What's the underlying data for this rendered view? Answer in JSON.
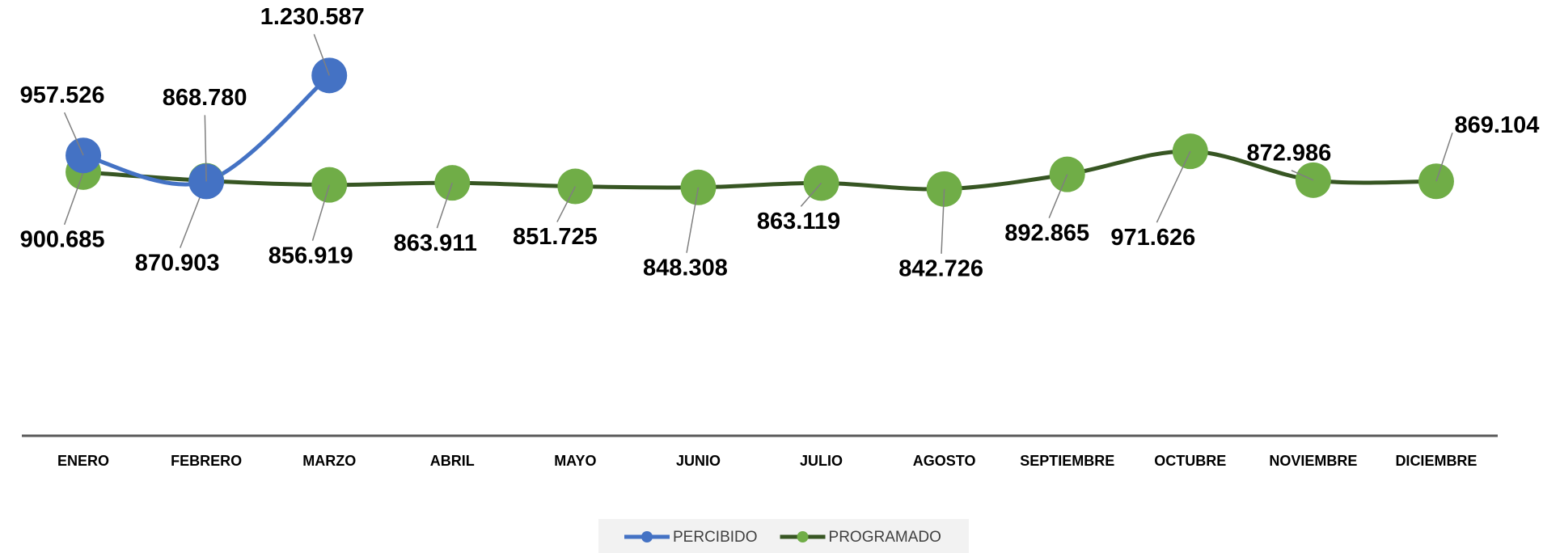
{
  "chart_data": {
    "type": "line",
    "categories": [
      "ENERO",
      "FEBRERO",
      "MARZO",
      "ABRIL",
      "MAYO",
      "JUNIO",
      "JULIO",
      "AGOSTO",
      "SEPTIEMBRE",
      "OCTUBRE",
      "NOVIEMBRE",
      "DICIEMBRE"
    ],
    "series": [
      {
        "name": "PERCIBIDO",
        "color": "#4472c4",
        "marker_color": "#4472c4",
        "values": [
          957526,
          868780,
          1230587,
          null,
          null,
          null,
          null,
          null,
          null,
          null,
          null,
          null
        ],
        "value_labels": [
          "957.526",
          "868.780",
          "1.230.587",
          null,
          null,
          null,
          null,
          null,
          null,
          null,
          null,
          null
        ]
      },
      {
        "name": "PROGRAMADO",
        "color": "#375623",
        "marker_color": "#70ad47",
        "values": [
          900685,
          870903,
          856919,
          863911,
          851725,
          848308,
          863119,
          842726,
          892865,
          971626,
          872986,
          869104
        ],
        "value_labels": [
          "900.685",
          "870.903",
          "856.919",
          "863.911",
          "851.725",
          "848.308",
          "863.119",
          "842.726",
          "892.865",
          "971.626",
          "872.986",
          "869.104"
        ]
      }
    ],
    "ylim": [
      0,
      1400000
    ],
    "legend": "bottom",
    "smooth": true
  }
}
